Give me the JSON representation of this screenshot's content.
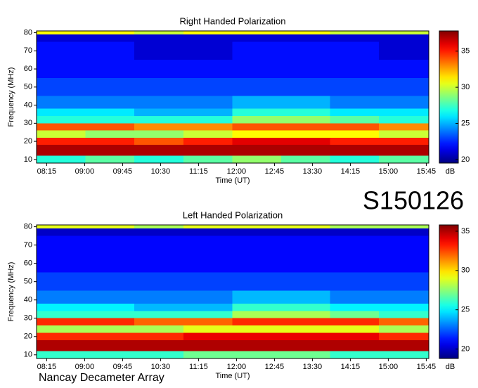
{
  "observation_id": "S150126",
  "instrument": "Nancay Decameter Array",
  "chart_data": [
    {
      "type": "heatmap",
      "title": "Right Handed Polarization",
      "xlabel": "Time (UT)",
      "ylabel": "Frequency (MHz)",
      "colorbar_label": "dB",
      "colormap": "jet",
      "xlim": [
        483,
        948
      ],
      "xticks": [
        {
          "value": 495,
          "label": "08:15"
        },
        {
          "value": 540,
          "label": "09:00"
        },
        {
          "value": 585,
          "label": "09:45"
        },
        {
          "value": 630,
          "label": "10:30"
        },
        {
          "value": 675,
          "label": "11:15"
        },
        {
          "value": 720,
          "label": "12:00"
        },
        {
          "value": 765,
          "label": "12:45"
        },
        {
          "value": 810,
          "label": "13:30"
        },
        {
          "value": 855,
          "label": "14:15"
        },
        {
          "value": 900,
          "label": "15:00"
        },
        {
          "value": 945,
          "label": "15:45"
        }
      ],
      "ylim": [
        8,
        81
      ],
      "yticks": [
        10,
        20,
        30,
        40,
        50,
        60,
        70,
        80
      ],
      "xbins": [
        483,
        541,
        599,
        657,
        715,
        773,
        831,
        889,
        948
      ],
      "ybins": [
        8,
        12,
        18,
        22,
        26,
        30,
        34,
        38,
        45,
        55,
        65,
        75,
        79,
        81
      ],
      "values": [
        [
          27,
          28,
          27,
          28,
          29,
          28,
          27,
          28
        ],
        [
          37,
          37,
          37,
          37,
          37,
          37,
          37,
          37
        ],
        [
          35,
          35,
          34,
          35,
          36,
          36,
          35,
          35
        ],
        [
          30,
          29,
          29,
          30,
          31,
          31,
          31,
          30
        ],
        [
          34,
          34,
          33,
          33,
          34,
          34,
          34,
          33
        ],
        [
          27,
          27,
          27,
          27,
          29,
          29,
          28,
          27
        ],
        [
          26,
          26,
          25,
          25,
          27,
          27,
          26,
          26
        ],
        [
          24,
          24,
          24,
          24,
          25,
          25,
          24,
          24
        ],
        [
          23,
          23,
          23,
          23,
          23,
          23,
          23,
          23
        ],
        [
          22,
          22,
          22,
          22,
          22,
          22,
          22,
          22
        ],
        [
          22,
          22,
          21,
          21,
          22,
          22,
          22,
          21
        ],
        [
          21,
          21,
          21,
          21,
          21,
          21,
          21,
          21
        ],
        [
          31,
          31,
          30,
          31,
          31,
          31,
          30,
          30
        ]
      ],
      "clim": [
        19.5,
        37.8
      ],
      "cticks": [
        20,
        25,
        30,
        35
      ]
    },
    {
      "type": "heatmap",
      "title": "Left Handed Polarization",
      "xlabel": "Time (UT)",
      "ylabel": "Frequency (MHz)",
      "colorbar_label": "dB",
      "colormap": "jet",
      "xlim": [
        483,
        948
      ],
      "xticks": [
        {
          "value": 495,
          "label": "08:15"
        },
        {
          "value": 540,
          "label": "09:00"
        },
        {
          "value": 585,
          "label": "09:45"
        },
        {
          "value": 630,
          "label": "10:30"
        },
        {
          "value": 675,
          "label": "11:15"
        },
        {
          "value": 720,
          "label": "12:00"
        },
        {
          "value": 765,
          "label": "12:45"
        },
        {
          "value": 810,
          "label": "13:30"
        },
        {
          "value": 855,
          "label": "14:15"
        },
        {
          "value": 900,
          "label": "15:00"
        },
        {
          "value": 945,
          "label": "15:45"
        }
      ],
      "ylim": [
        8,
        81
      ],
      "yticks": [
        10,
        20,
        30,
        40,
        50,
        60,
        70,
        80
      ],
      "xbins": [
        483,
        541,
        599,
        657,
        715,
        773,
        831,
        889,
        948
      ],
      "ybins": [
        8,
        12,
        18,
        22,
        26,
        30,
        34,
        38,
        45,
        55,
        65,
        75,
        79,
        81
      ],
      "values": [
        [
          26,
          26,
          26,
          27,
          27,
          27,
          26,
          26
        ],
        [
          35,
          35,
          35,
          35,
          35,
          35,
          35,
          35
        ],
        [
          33,
          33,
          33,
          34,
          34,
          34,
          34,
          33
        ],
        [
          28,
          28,
          28,
          29,
          29,
          29,
          29,
          28
        ],
        [
          33,
          33,
          32,
          32,
          33,
          33,
          33,
          32
        ],
        [
          26,
          26,
          26,
          26,
          28,
          28,
          27,
          26
        ],
        [
          25,
          25,
          24,
          24,
          26,
          26,
          25,
          25
        ],
        [
          23,
          23,
          23,
          23,
          24,
          24,
          23,
          23
        ],
        [
          22,
          22,
          22,
          22,
          22,
          22,
          22,
          22
        ],
        [
          21,
          21,
          21,
          21,
          21,
          21,
          21,
          21
        ],
        [
          21,
          21,
          21,
          21,
          21,
          21,
          21,
          21
        ],
        [
          20,
          20,
          20,
          20,
          20,
          20,
          20,
          20
        ],
        [
          29,
          29,
          28,
          29,
          29,
          29,
          28,
          28
        ]
      ],
      "clim": [
        18.8,
        35.8
      ],
      "cticks": [
        20,
        25,
        30,
        35
      ]
    }
  ]
}
